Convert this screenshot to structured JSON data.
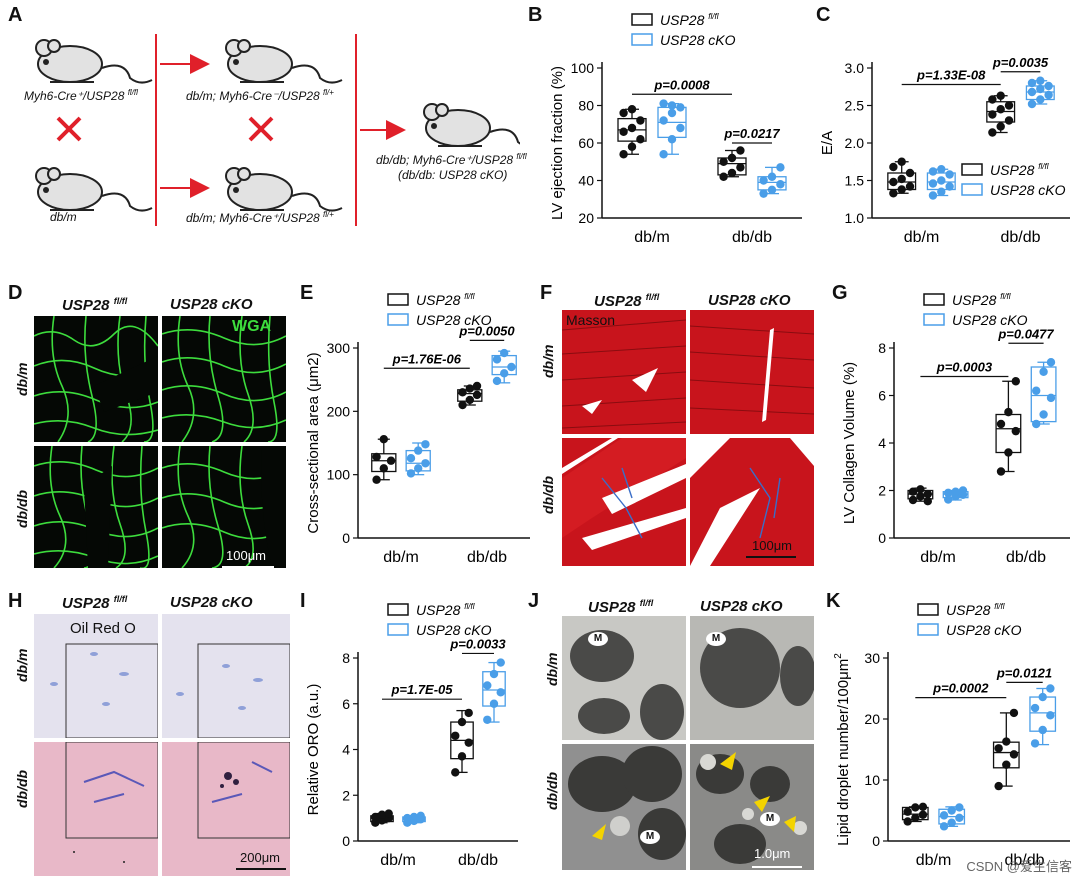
{
  "panels": {
    "A": {
      "letter": "A",
      "mouse1_label": "Myh6-Cre⁺/USP28 ",
      "mouse1_sup": "fl/fl",
      "mouse2_label": "db/m",
      "mouse3_label": "db/m; Myh6-Cre⁻/USP28 ",
      "mouse3_sup": "fl/+",
      "mouse4_label": "db/m; Myh6-Cre⁺/USP28 ",
      "mouse4_sup": "fl/+",
      "mouse5_label1": "db/db; Myh6-Cre⁺/USP28 ",
      "mouse5_sup": "fl/fl",
      "mouse5_label2": "(db/db: USP28 cKO)",
      "cross_color": "#e0202a",
      "arrow_color": "#e0202a"
    },
    "B": {
      "letter": "B"
    },
    "C": {
      "letter": "C"
    },
    "D": {
      "letter": "D",
      "col1": "USP28 ",
      "col1_sup": "fl/fl",
      "col2": "USP28 cKO",
      "row1": "db/m",
      "row2": "db/db",
      "stain": "WGA",
      "scale": "100μm",
      "stain_color": "#3ddc3d"
    },
    "E": {
      "letter": "E"
    },
    "F": {
      "letter": "F",
      "col1": "USP28 ",
      "col1_sup": "fl/fl",
      "col2": "USP28 cKO",
      "row1": "db/m",
      "row2": "db/db",
      "stain": "Masson",
      "scale": "100μm"
    },
    "G": {
      "letter": "G"
    },
    "H": {
      "letter": "H",
      "col1": "USP28 ",
      "col1_sup": "fl/fl",
      "col2": "USP28 cKO",
      "row1": "db/m",
      "row2": "db/db",
      "stain": "Oil Red O",
      "scale": "200μm"
    },
    "I": {
      "letter": "I"
    },
    "J": {
      "letter": "J",
      "col1": "USP28 ",
      "col1_sup": "fl/fl",
      "col2": "USP28 cKO",
      "row1": "db/m",
      "row2": "db/db",
      "m_label": "M",
      "scale": "1.0μm"
    },
    "K": {
      "letter": "K"
    }
  },
  "legend": {
    "ctrl": "USP28 ",
    "ctrl_sup": "fl/fl",
    "cko": "USP28 cKO",
    "ctrl_color": "#111111",
    "cko_color": "#4a9ee8"
  },
  "watermark": "CSDN @爱生信客",
  "chart_data": [
    {
      "id": "B",
      "type": "box",
      "ylabel": "LV ejection fraction (%)",
      "categories": [
        "db/m",
        "db/db"
      ],
      "ylim": [
        20,
        100
      ],
      "yticks": [
        20,
        40,
        60,
        80,
        100
      ],
      "series": [
        {
          "name": "USP28 fl/fl",
          "groups": [
            {
              "q1": 61,
              "median": 67,
              "q3": 73,
              "min": 54,
              "max": 78,
              "points": [
                54,
                58,
                62,
                66,
                68,
                72,
                76,
                78
              ]
            },
            {
              "q1": 43,
              "median": 49,
              "q3": 52,
              "min": 42,
              "max": 56,
              "points": [
                42,
                44,
                47,
                50,
                52,
                56
              ]
            }
          ]
        },
        {
          "name": "USP28 cKO",
          "groups": [
            {
              "q1": 63,
              "median": 71,
              "q3": 79,
              "min": 54,
              "max": 81,
              "points": [
                54,
                62,
                68,
                72,
                76,
                79,
                81,
                80
              ]
            },
            {
              "q1": 35,
              "median": 39,
              "q3": 42,
              "min": 33,
              "max": 47,
              "points": [
                33,
                35,
                38,
                40,
                42,
                47
              ]
            }
          ]
        }
      ],
      "annotations": [
        {
          "text": "p=0.0008",
          "y": 86,
          "from": 0,
          "to": 1
        },
        {
          "text": "p=0.0217",
          "y": 60,
          "from": 1,
          "to": 1
        }
      ]
    },
    {
      "id": "C",
      "type": "box",
      "ylabel": "E/A",
      "categories": [
        "db/m",
        "db/db"
      ],
      "ylim": [
        1.0,
        3.0
      ],
      "yticks": [
        1.0,
        1.5,
        2.0,
        2.5,
        3.0
      ],
      "series": [
        {
          "name": "USP28 fl/fl",
          "groups": [
            {
              "q1": 1.38,
              "median": 1.48,
              "q3": 1.6,
              "min": 1.33,
              "max": 1.75,
              "points": [
                1.33,
                1.38,
                1.42,
                1.48,
                1.52,
                1.6,
                1.68,
                1.75
              ]
            },
            {
              "q1": 2.28,
              "median": 2.42,
              "q3": 2.55,
              "min": 2.14,
              "max": 2.63,
              "points": [
                2.14,
                2.22,
                2.3,
                2.38,
                2.45,
                2.5,
                2.58,
                2.63
              ]
            }
          ]
        },
        {
          "name": "USP28 cKO",
          "groups": [
            {
              "q1": 1.38,
              "median": 1.48,
              "q3": 1.6,
              "min": 1.3,
              "max": 1.65,
              "points": [
                1.3,
                1.35,
                1.42,
                1.46,
                1.5,
                1.58,
                1.62,
                1.65
              ]
            },
            {
              "q1": 2.58,
              "median": 2.68,
              "q3": 2.76,
              "min": 2.52,
              "max": 2.83,
              "points": [
                2.52,
                2.58,
                2.64,
                2.68,
                2.72,
                2.76,
                2.8,
                2.83
              ]
            }
          ]
        }
      ],
      "annotations": [
        {
          "text": "p=1.33E-08",
          "y": 2.78,
          "from": 0,
          "to": 1
        },
        {
          "text": "p=0.0035",
          "y": 2.95,
          "from": 1,
          "to": 1
        }
      ]
    },
    {
      "id": "E",
      "type": "box",
      "ylabel": "Cross-sectional area (μm2)",
      "categories": [
        "db/m",
        "db/db"
      ],
      "ylim": [
        0,
        300
      ],
      "yticks": [
        0,
        100,
        200,
        300
      ],
      "series": [
        {
          "name": "USP28 fl/fl",
          "groups": [
            {
              "q1": 105,
              "median": 122,
              "q3": 133,
              "min": 92,
              "max": 156,
              "points": [
                92,
                110,
                122,
                128,
                156
              ]
            },
            {
              "q1": 216,
              "median": 228,
              "q3": 234,
              "min": 210,
              "max": 240,
              "points": [
                210,
                218,
                226,
                230,
                236,
                240
              ]
            }
          ]
        },
        {
          "name": "USP28 cKO",
          "groups": [
            {
              "q1": 106,
              "median": 118,
              "q3": 138,
              "min": 100,
              "max": 150,
              "points": [
                102,
                110,
                118,
                126,
                138,
                148
              ]
            },
            {
              "q1": 258,
              "median": 270,
              "q3": 288,
              "min": 245,
              "max": 295,
              "points": [
                248,
                260,
                270,
                282,
                292
              ]
            }
          ]
        }
      ],
      "annotations": [
        {
          "text": "p=1.76E-06",
          "y": 268,
          "from": 0,
          "to": 1
        },
        {
          "text": "p=0.0050",
          "y": 312,
          "from": 1,
          "to": 1
        }
      ]
    },
    {
      "id": "G",
      "type": "box",
      "ylabel": "LV Collagen Volume (%)",
      "categories": [
        "db/m",
        "db/db"
      ],
      "ylim": [
        0,
        8
      ],
      "yticks": [
        0,
        2,
        4,
        6,
        8
      ],
      "series": [
        {
          "name": "USP28 fl/fl",
          "groups": [
            {
              "q1": 1.65,
              "median": 1.85,
              "q3": 2.0,
              "min": 1.55,
              "max": 2.1,
              "points": [
                1.6,
                1.75,
                1.85,
                1.95,
                2.05,
                1.55
              ]
            },
            {
              "q1": 3.6,
              "median": 4.6,
              "q3": 5.2,
              "min": 2.8,
              "max": 6.6,
              "points": [
                2.8,
                3.6,
                4.5,
                4.8,
                5.3,
                6.6
              ]
            }
          ]
        },
        {
          "name": "USP28 cKO",
          "groups": [
            {
              "q1": 1.7,
              "median": 1.85,
              "q3": 1.95,
              "min": 1.6,
              "max": 2.0,
              "points": [
                1.62,
                1.75,
                1.82,
                1.9,
                1.95,
                2.0
              ]
            },
            {
              "q1": 4.9,
              "median": 6.0,
              "q3": 7.2,
              "min": 4.8,
              "max": 7.4,
              "points": [
                4.8,
                5.2,
                5.9,
                6.2,
                7.0,
                7.4
              ]
            }
          ]
        }
      ],
      "annotations": [
        {
          "text": "p=0.0003",
          "y": 6.8,
          "from": 0,
          "to": 1
        },
        {
          "text": "p=0.0477",
          "y": 8.2,
          "from": 1,
          "to": 1
        }
      ]
    },
    {
      "id": "I",
      "type": "box",
      "ylabel": "Relative ORO (a.u.)",
      "categories": [
        "db/m",
        "db/db"
      ],
      "ylim": [
        0,
        8
      ],
      "yticks": [
        0,
        2,
        4,
        6,
        8
      ],
      "series": [
        {
          "name": "USP28 fl/fl",
          "groups": [
            {
              "q1": 0.85,
              "median": 1.0,
              "q3": 1.1,
              "min": 0.8,
              "max": 1.2,
              "points": [
                0.8,
                0.9,
                1.0,
                1.05,
                1.15,
                1.2
              ]
            },
            {
              "q1": 3.6,
              "median": 4.4,
              "q3": 5.2,
              "min": 3.0,
              "max": 5.7,
              "points": [
                3.0,
                3.7,
                4.3,
                4.6,
                5.2,
                5.6
              ]
            }
          ]
        },
        {
          "name": "USP28 cKO",
          "groups": [
            {
              "q1": 0.85,
              "median": 0.95,
              "q3": 1.05,
              "min": 0.8,
              "max": 1.1,
              "points": [
                0.8,
                0.88,
                0.95,
                1.0,
                1.05,
                1.1
              ]
            },
            {
              "q1": 5.9,
              "median": 6.6,
              "q3": 7.4,
              "min": 5.2,
              "max": 7.8,
              "points": [
                5.3,
                6.0,
                6.5,
                6.8,
                7.3,
                7.8
              ]
            }
          ]
        }
      ],
      "annotations": [
        {
          "text": "p=1.7E-05",
          "y": 6.2,
          "from": 0,
          "to": 1
        },
        {
          "text": "p=0.0033",
          "y": 8.2,
          "from": 1,
          "to": 1
        }
      ]
    },
    {
      "id": "K",
      "type": "box",
      "ylabel": "Lipid droplet number/100μm",
      "ylabel_sup": "2",
      "categories": [
        "db/m",
        "db/db"
      ],
      "ylim": [
        0,
        30
      ],
      "yticks": [
        0,
        10,
        20,
        30
      ],
      "series": [
        {
          "name": "USP28 fl/fl",
          "groups": [
            {
              "q1": 3.5,
              "median": 4.4,
              "q3": 5.5,
              "min": 3.2,
              "max": 5.6,
              "points": [
                3.2,
                3.8,
                4.3,
                4.8,
                5.5,
                5.6
              ]
            },
            {
              "q1": 12.0,
              "median": 14.5,
              "q3": 16.2,
              "min": 9.0,
              "max": 21.0,
              "points": [
                9.0,
                12.5,
                14.2,
                15.2,
                16.3,
                21.0
              ]
            }
          ]
        },
        {
          "name": "USP28 cKO",
          "groups": [
            {
              "q1": 2.8,
              "median": 4.0,
              "q3": 5.2,
              "min": 2.4,
              "max": 5.6,
              "points": [
                2.4,
                3.0,
                3.8,
                4.2,
                5.0,
                5.5
              ]
            },
            {
              "q1": 18.0,
              "median": 21.0,
              "q3": 23.6,
              "min": 15.8,
              "max": 25.0,
              "points": [
                16.0,
                18.2,
                20.6,
                21.8,
                23.6,
                25.0
              ]
            }
          ]
        }
      ],
      "annotations": [
        {
          "text": "p=0.0002",
          "y": 23.5,
          "from": 0,
          "to": 1
        },
        {
          "text": "p=0.0121",
          "y": 26.0,
          "from": 1,
          "to": 1
        }
      ]
    }
  ]
}
